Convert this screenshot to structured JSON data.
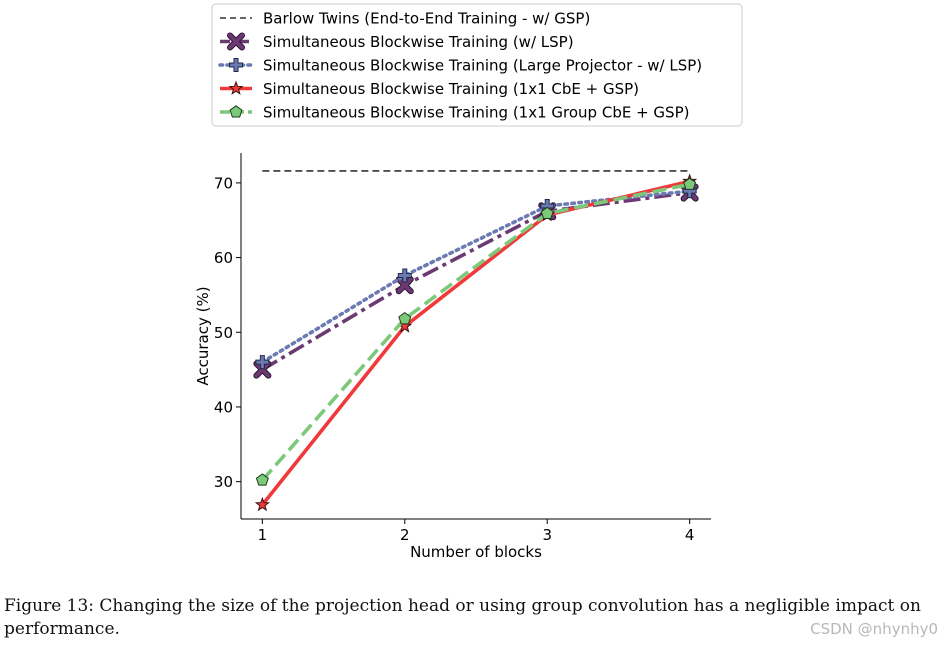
{
  "chart_data": {
    "type": "line",
    "title": "",
    "xlabel": "Number of blocks",
    "ylabel": "Accuracy (%)",
    "x": [
      1,
      2,
      3,
      4
    ],
    "xticks": [
      1,
      2,
      3,
      4
    ],
    "yticks": [
      30,
      40,
      50,
      60,
      70
    ],
    "xlim": [
      0.85,
      4.15
    ],
    "ylim": [
      25,
      74
    ],
    "grid": false,
    "legend_position": "top",
    "baseline": {
      "name": "Barlow Twins (End-to-End Training - w/ GSP)",
      "value": 71.6,
      "color": "#333333"
    },
    "series": [
      {
        "name": "Simultaneous Blockwise Training (w/ LSP)",
        "values": [
          45.0,
          56.3,
          66.2,
          68.7
        ],
        "color": "#6b3a73",
        "marker": "x"
      },
      {
        "name": "Simultaneous Blockwise Training (Large Projector - w/ LSP)",
        "values": [
          46.0,
          57.6,
          66.9,
          68.9
        ],
        "color": "#6b7ab0",
        "marker": "plus"
      },
      {
        "name": "Simultaneous Blockwise Training (1x1 CbE + GSP)",
        "values": [
          26.9,
          50.8,
          65.7,
          70.2
        ],
        "color": "#f0393a",
        "marker": "star"
      },
      {
        "name": "Simultaneous Blockwise Training (1x1 Group CbE + GSP)",
        "values": [
          30.2,
          51.8,
          65.9,
          69.8
        ],
        "color": "#7cc97a",
        "marker": "pentagon"
      }
    ]
  },
  "caption": "Figure 13: Changing the size of the projection head or using group convolution has a negligible impact on performance.",
  "watermark": "CSDN @nhynhy0"
}
